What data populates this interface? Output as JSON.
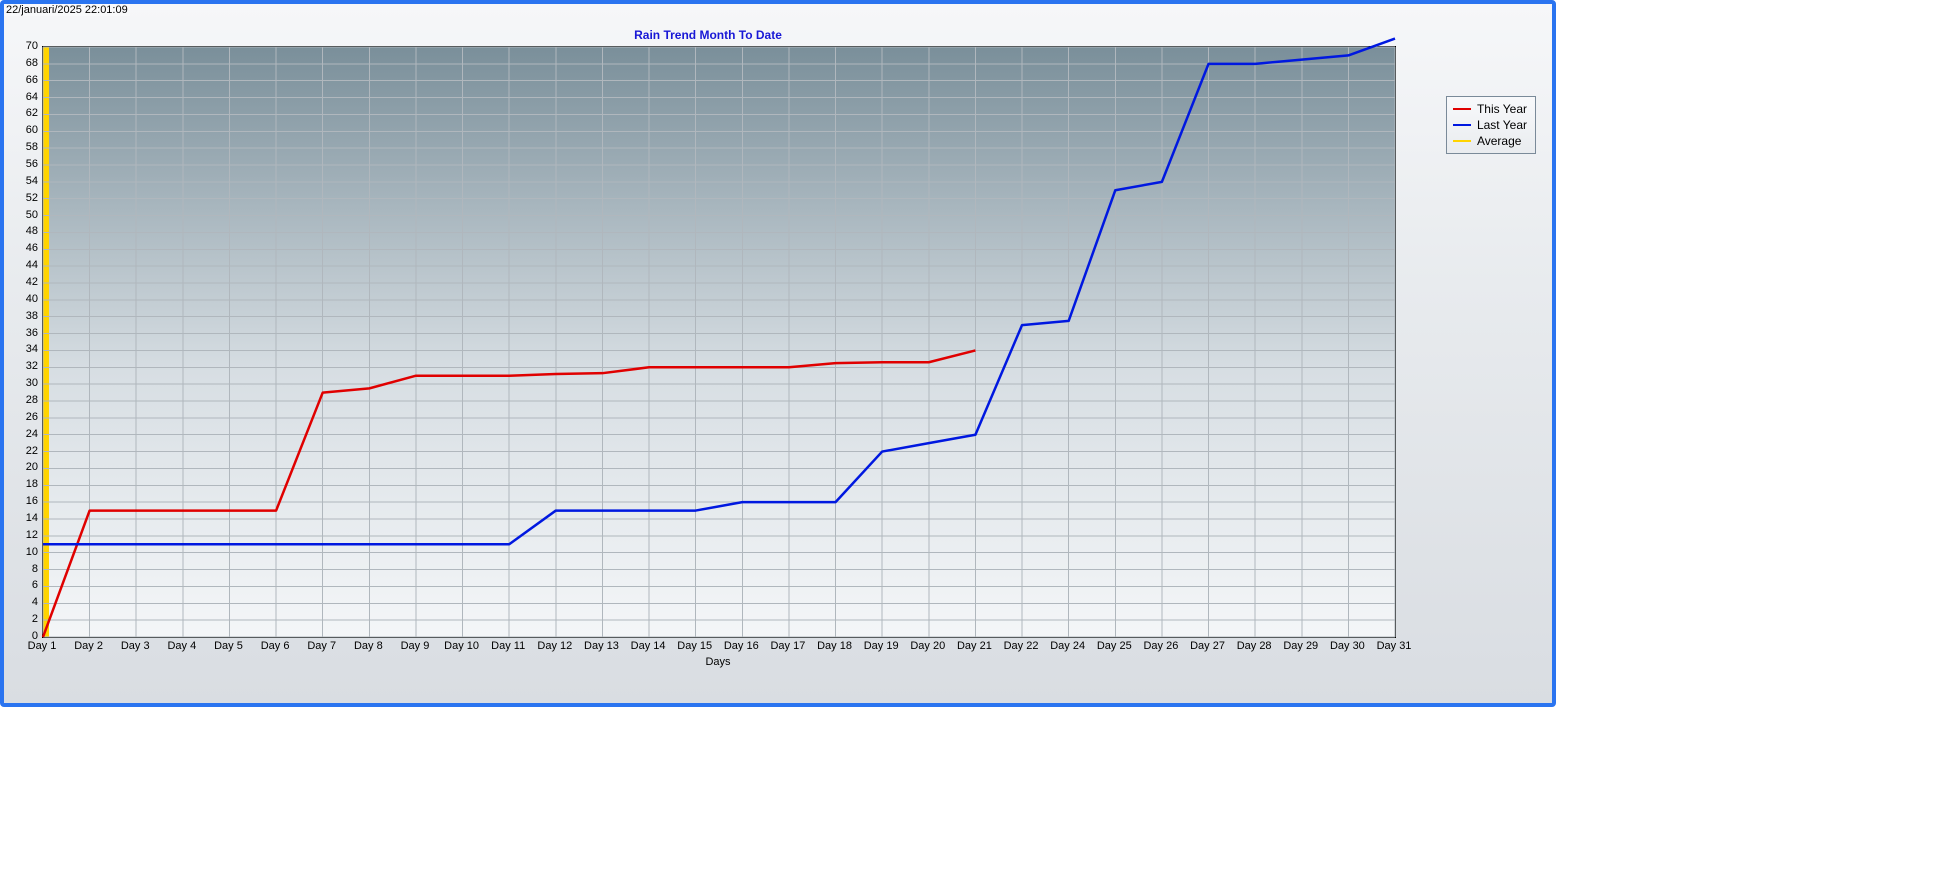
{
  "timestamp": "22/januari/2025 22:01:09",
  "chart": {
    "type": "line",
    "title": "Rain Trend Month To Date",
    "title_color": "#1818d6",
    "title_fontsize": 12,
    "x_axis_title": "Days",
    "label_fontsize": 11,
    "background_gradient_top": "#7a8f9a",
    "background_gradient_bottom": "#f4f6f8",
    "grid_color": "#b0b7bd",
    "border_color": "#000000",
    "yellow_axis_bar_color": "#ffd400",
    "ylim": [
      0,
      70
    ],
    "ytick_step": 2,
    "y_ticks": [
      0,
      2,
      4,
      6,
      8,
      10,
      12,
      14,
      16,
      18,
      20,
      22,
      24,
      26,
      28,
      30,
      32,
      34,
      36,
      38,
      40,
      42,
      44,
      46,
      48,
      50,
      52,
      54,
      56,
      58,
      60,
      62,
      64,
      66,
      68,
      70
    ],
    "x_categories": [
      "Day 1",
      "Day 2",
      "Day 3",
      "Day 4",
      "Day 5",
      "Day 6",
      "Day 7",
      "Day 8",
      "Day 9",
      "Day 10",
      "Day 11",
      "Day 12",
      "Day 13",
      "Day 14",
      "Day 15",
      "Day 16",
      "Day 17",
      "Day 18",
      "Day 19",
      "Day 20",
      "Day 21",
      "Day 22",
      "Day 24",
      "Day 25",
      "Day 26",
      "Day 27",
      "Day 28",
      "Day 29",
      "Day 30",
      "Day 31"
    ],
    "line_width": 2.5,
    "series": [
      {
        "name": "This Year",
        "color": "#e00000",
        "values": [
          0,
          15,
          15,
          15,
          15,
          15,
          29,
          29.5,
          31,
          31,
          31,
          31.2,
          31.3,
          32,
          32,
          32,
          32,
          32.5,
          32.6,
          32.6,
          34
        ]
      },
      {
        "name": "Last Year",
        "color": "#0018e0",
        "values": [
          11,
          11,
          11,
          11,
          11,
          11,
          11,
          11,
          11,
          11,
          11,
          15,
          15,
          15,
          15,
          16,
          16,
          16,
          22,
          23,
          24,
          37,
          37.5,
          53,
          54,
          68,
          68,
          68.5,
          69,
          71
        ]
      },
      {
        "name": "Average",
        "color": "#ffd400",
        "values": []
      }
    ]
  },
  "legend": {
    "border_color": "#7a8a99",
    "items": [
      {
        "label": "This Year",
        "color": "#e00000"
      },
      {
        "label": "Last Year",
        "color": "#0018e0"
      },
      {
        "label": "Average",
        "color": "#ffd400"
      }
    ]
  }
}
